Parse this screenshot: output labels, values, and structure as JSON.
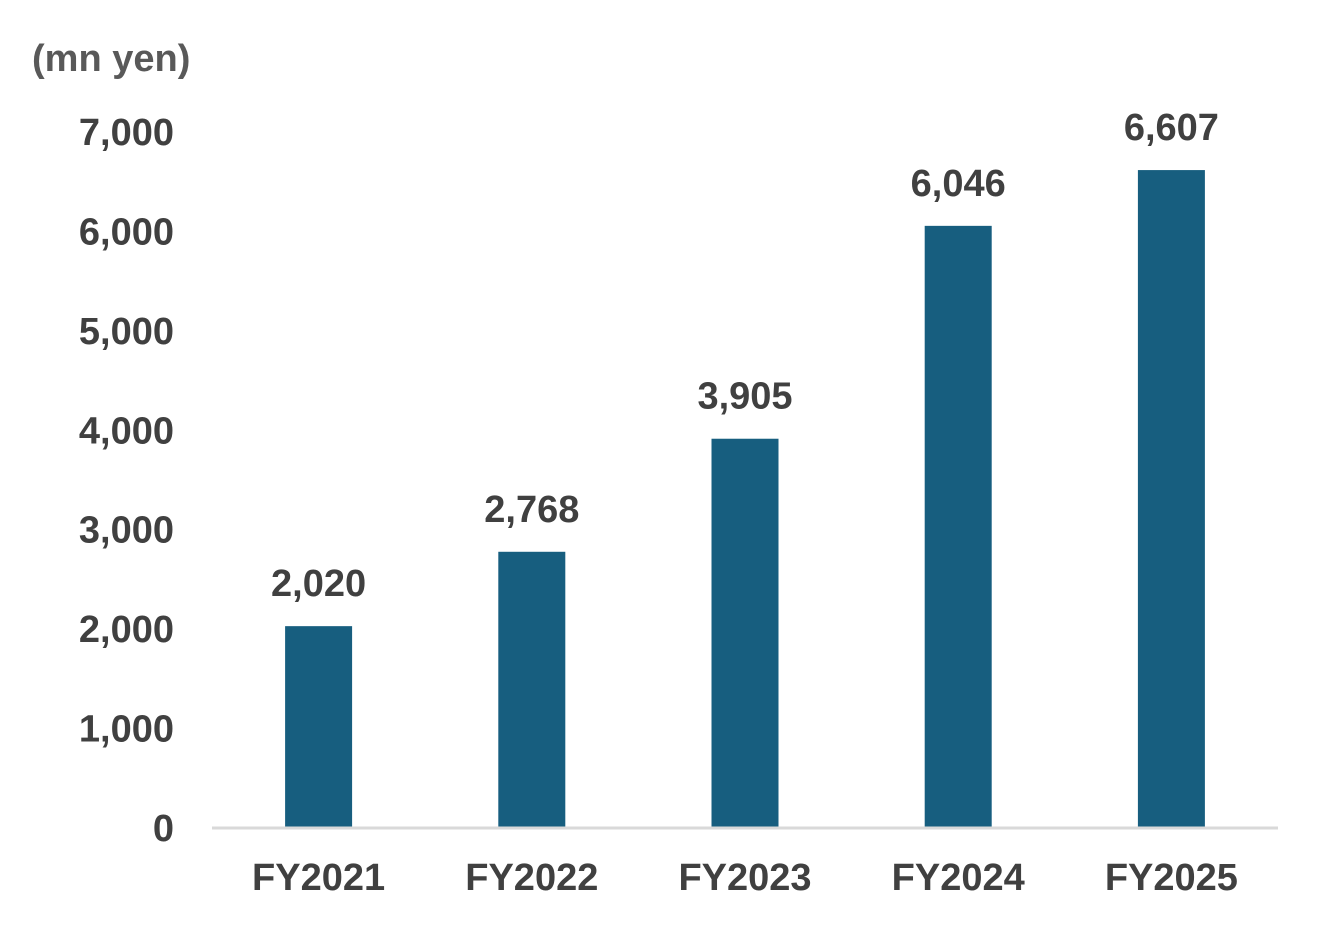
{
  "chart_data": {
    "type": "bar",
    "title": "",
    "unit_label": "(mn yen)",
    "xlabel": "",
    "ylabel": "",
    "categories": [
      "FY2021",
      "FY2022",
      "FY2023",
      "FY2024",
      "FY2025"
    ],
    "values": [
      2020,
      2768,
      3905,
      6046,
      6607
    ],
    "data_labels": [
      "2,020",
      "2,768",
      "3,905",
      "6,046",
      "6,607"
    ],
    "yticks": [
      0,
      1000,
      2000,
      3000,
      4000,
      5000,
      6000,
      7000
    ],
    "ytick_labels": [
      "0",
      "1,000",
      "2,000",
      "3,000",
      "4,000",
      "5,000",
      "6,000",
      "7,000"
    ],
    "ylim": [
      0,
      7000
    ],
    "grid": false,
    "legend": "none",
    "bar_color": "#175E7F",
    "axis_color": "#D9D9D9"
  }
}
